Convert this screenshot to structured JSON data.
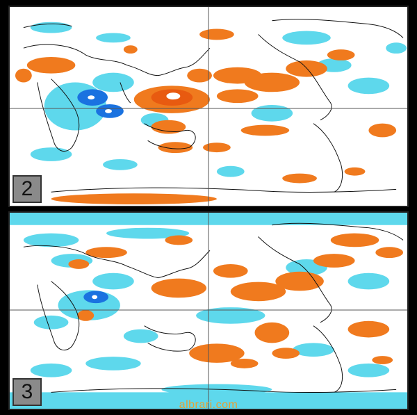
{
  "panels": [
    {
      "id": "2",
      "label": "2"
    },
    {
      "id": "3",
      "label": "3"
    }
  ],
  "colors": {
    "warm": "#f07a1e",
    "warm_strong": "#e85a10",
    "cool": "#5ed8ec",
    "cool_strong": "#1a72e0",
    "coast": "#111111",
    "grid": "#555555"
  },
  "watermark": "albrari.com"
}
